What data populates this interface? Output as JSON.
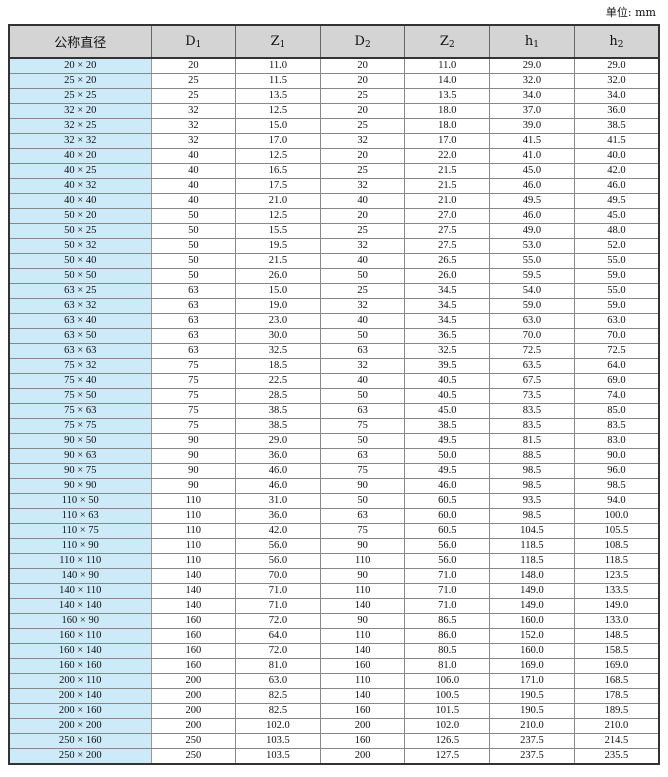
{
  "unit_label": "单位: mm",
  "colors": {
    "header_bg": "#d4d4d4",
    "first_col_bg": "#cdeaf8"
  },
  "columns": [
    {
      "base": "公称直径",
      "sub": ""
    },
    {
      "base": "D",
      "sub": "1"
    },
    {
      "base": "Z",
      "sub": "1"
    },
    {
      "base": "D",
      "sub": "2"
    },
    {
      "base": "Z",
      "sub": "2"
    },
    {
      "base": "h",
      "sub": "1"
    },
    {
      "base": "h",
      "sub": "2"
    }
  ],
  "rows": [
    [
      "20 × 20",
      "20",
      "11.0",
      "20",
      "11.0",
      "29.0",
      "29.0"
    ],
    [
      "25 × 20",
      "25",
      "11.5",
      "20",
      "14.0",
      "32.0",
      "32.0"
    ],
    [
      "25 × 25",
      "25",
      "13.5",
      "25",
      "13.5",
      "34.0",
      "34.0"
    ],
    [
      "32 × 20",
      "32",
      "12.5",
      "20",
      "18.0",
      "37.0",
      "36.0"
    ],
    [
      "32 × 25",
      "32",
      "15.0",
      "25",
      "18.0",
      "39.0",
      "38.5"
    ],
    [
      "32 × 32",
      "32",
      "17.0",
      "32",
      "17.0",
      "41.5",
      "41.5"
    ],
    [
      "40 × 20",
      "40",
      "12.5",
      "20",
      "22.0",
      "41.0",
      "40.0"
    ],
    [
      "40 × 25",
      "40",
      "16.5",
      "25",
      "21.5",
      "45.0",
      "42.0"
    ],
    [
      "40 × 32",
      "40",
      "17.5",
      "32",
      "21.5",
      "46.0",
      "46.0"
    ],
    [
      "40 × 40",
      "40",
      "21.0",
      "40",
      "21.0",
      "49.5",
      "49.5"
    ],
    [
      "50 × 20",
      "50",
      "12.5",
      "20",
      "27.0",
      "46.0",
      "45.0"
    ],
    [
      "50 × 25",
      "50",
      "15.5",
      "25",
      "27.5",
      "49.0",
      "48.0"
    ],
    [
      "50 × 32",
      "50",
      "19.5",
      "32",
      "27.5",
      "53.0",
      "52.0"
    ],
    [
      "50 × 40",
      "50",
      "21.5",
      "40",
      "26.5",
      "55.0",
      "55.0"
    ],
    [
      "50 × 50",
      "50",
      "26.0",
      "50",
      "26.0",
      "59.5",
      "59.0"
    ],
    [
      "63 × 25",
      "63",
      "15.0",
      "25",
      "34.5",
      "54.0",
      "55.0"
    ],
    [
      "63 × 32",
      "63",
      "19.0",
      "32",
      "34.5",
      "59.0",
      "59.0"
    ],
    [
      "63 × 40",
      "63",
      "23.0",
      "40",
      "34.5",
      "63.0",
      "63.0"
    ],
    [
      "63 × 50",
      "63",
      "30.0",
      "50",
      "36.5",
      "70.0",
      "70.0"
    ],
    [
      "63 × 63",
      "63",
      "32.5",
      "63",
      "32.5",
      "72.5",
      "72.5"
    ],
    [
      "75 × 32",
      "75",
      "18.5",
      "32",
      "39.5",
      "63.5",
      "64.0"
    ],
    [
      "75 × 40",
      "75",
      "22.5",
      "40",
      "40.5",
      "67.5",
      "69.0"
    ],
    [
      "75 × 50",
      "75",
      "28.5",
      "50",
      "40.5",
      "73.5",
      "74.0"
    ],
    [
      "75 × 63",
      "75",
      "38.5",
      "63",
      "45.0",
      "83.5",
      "85.0"
    ],
    [
      "75 × 75",
      "75",
      "38.5",
      "75",
      "38.5",
      "83.5",
      "83.5"
    ],
    [
      "90 × 50",
      "90",
      "29.0",
      "50",
      "49.5",
      "81.5",
      "83.0"
    ],
    [
      "90 × 63",
      "90",
      "36.0",
      "63",
      "50.0",
      "88.5",
      "90.0"
    ],
    [
      "90 × 75",
      "90",
      "46.0",
      "75",
      "49.5",
      "98.5",
      "96.0"
    ],
    [
      "90 × 90",
      "90",
      "46.0",
      "90",
      "46.0",
      "98.5",
      "98.5"
    ],
    [
      "110 × 50",
      "110",
      "31.0",
      "50",
      "60.5",
      "93.5",
      "94.0"
    ],
    [
      "110 × 63",
      "110",
      "36.0",
      "63",
      "60.0",
      "98.5",
      "100.0"
    ],
    [
      "110 × 75",
      "110",
      "42.0",
      "75",
      "60.5",
      "104.5",
      "105.5"
    ],
    [
      "110 × 90",
      "110",
      "56.0",
      "90",
      "56.0",
      "118.5",
      "108.5"
    ],
    [
      "110 × 110",
      "110",
      "56.0",
      "110",
      "56.0",
      "118.5",
      "118.5"
    ],
    [
      "140 × 90",
      "140",
      "70.0",
      "90",
      "71.0",
      "148.0",
      "123.5"
    ],
    [
      "140 × 110",
      "140",
      "71.0",
      "110",
      "71.0",
      "149.0",
      "133.5"
    ],
    [
      "140 × 140",
      "140",
      "71.0",
      "140",
      "71.0",
      "149.0",
      "149.0"
    ],
    [
      "160 × 90",
      "160",
      "72.0",
      "90",
      "86.5",
      "160.0",
      "133.0"
    ],
    [
      "160 × 110",
      "160",
      "64.0",
      "110",
      "86.0",
      "152.0",
      "148.5"
    ],
    [
      "160 × 140",
      "160",
      "72.0",
      "140",
      "80.5",
      "160.0",
      "158.5"
    ],
    [
      "160 × 160",
      "160",
      "81.0",
      "160",
      "81.0",
      "169.0",
      "169.0"
    ],
    [
      "200 × 110",
      "200",
      "63.0",
      "110",
      "106.0",
      "171.0",
      "168.5"
    ],
    [
      "200 × 140",
      "200",
      "82.5",
      "140",
      "100.5",
      "190.5",
      "178.5"
    ],
    [
      "200 × 160",
      "200",
      "82.5",
      "160",
      "101.5",
      "190.5",
      "189.5"
    ],
    [
      "200 × 200",
      "200",
      "102.0",
      "200",
      "102.0",
      "210.0",
      "210.0"
    ],
    [
      "250 × 160",
      "250",
      "103.5",
      "160",
      "126.5",
      "237.5",
      "214.5"
    ],
    [
      "250 × 200",
      "250",
      "103.5",
      "200",
      "127.5",
      "237.5",
      "235.5"
    ]
  ]
}
